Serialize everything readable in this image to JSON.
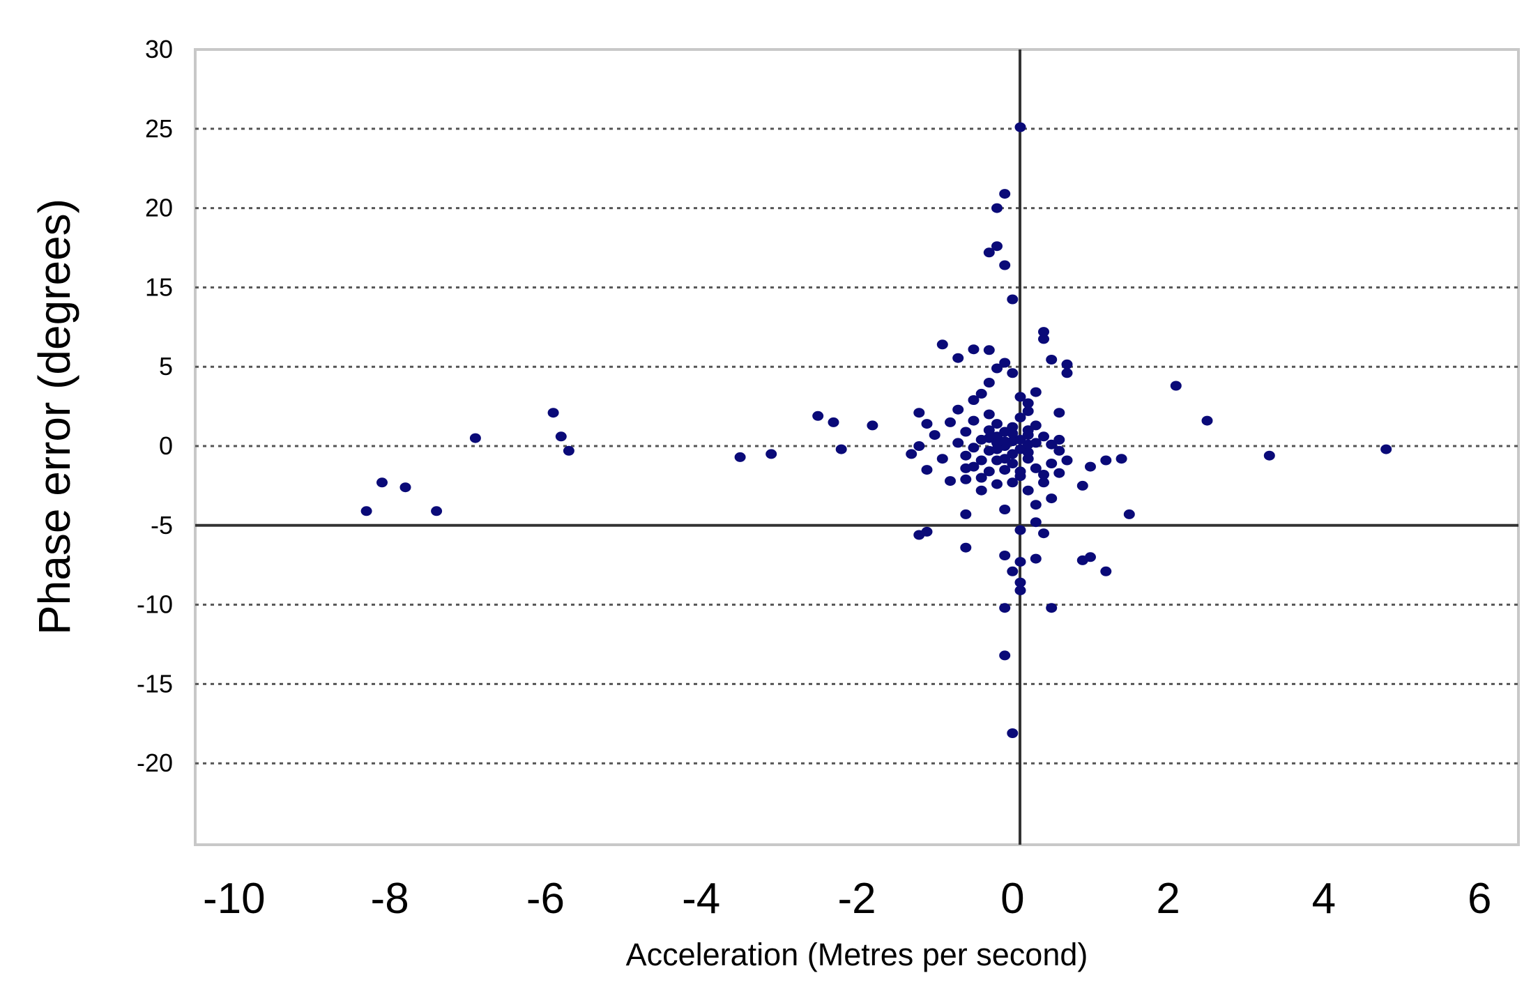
{
  "chart_data": {
    "type": "scatter",
    "xlabel": "Acceleration (Metres per second)",
    "ylabel": "Phase error (degrees)",
    "xlim": [
      -10.5,
      6.5
    ],
    "ylim": [
      -25,
      30
    ],
    "x_ticks": [
      "-10",
      "-8",
      "-6",
      "-4",
      "-2",
      "0",
      "2",
      "4",
      "6"
    ],
    "y_ticks": [
      "30",
      "25",
      "20",
      "15",
      "5",
      "0",
      "-5",
      "-10",
      "-15",
      "-20"
    ],
    "grid": "horizontal dotted",
    "marker_color": "#0a0a78",
    "series": [
      {
        "points": [
          [
            -8.3,
            -4.1
          ],
          [
            -8.1,
            -2.3
          ],
          [
            -7.8,
            -2.6
          ],
          [
            -7.4,
            -4.1
          ],
          [
            -6.9,
            0.5
          ],
          [
            -5.9,
            2.1
          ],
          [
            -5.8,
            0.6
          ],
          [
            -5.7,
            -0.3
          ],
          [
            -3.5,
            -0.7
          ],
          [
            -3.1,
            -0.5
          ],
          [
            -2.5,
            1.9
          ],
          [
            -2.3,
            1.5
          ],
          [
            -2.2,
            -0.2
          ],
          [
            -1.8,
            1.3
          ],
          [
            -1.2,
            -5.6
          ],
          [
            -1.1,
            -5.4
          ],
          [
            -0.6,
            -6.4
          ],
          [
            -0.6,
            -4.3
          ],
          [
            -0.3,
            -1.6
          ],
          [
            -0.9,
            7.8
          ],
          [
            -0.7,
            6.1
          ],
          [
            -0.5,
            7.2
          ],
          [
            -0.3,
            7.1
          ],
          [
            -0.3,
            17.2
          ],
          [
            -0.2,
            17.6
          ],
          [
            -0.2,
            20.0
          ],
          [
            -0.1,
            20.9
          ],
          [
            0.1,
            25.1
          ],
          [
            -0.1,
            16.4
          ],
          [
            0.0,
            13.5
          ],
          [
            0.4,
            8.5
          ],
          [
            0.4,
            9.4
          ],
          [
            0.5,
            5.9
          ],
          [
            0.7,
            5.3
          ],
          [
            0.7,
            4.6
          ],
          [
            0.6,
            2.1
          ],
          [
            0.2,
            2.7
          ],
          [
            0.3,
            3.4
          ],
          [
            2.1,
            3.8
          ],
          [
            2.5,
            1.6
          ],
          [
            3.3,
            -0.6
          ],
          [
            4.8,
            -0.2
          ],
          [
            1.4,
            -0.8
          ],
          [
            1.2,
            -0.9
          ],
          [
            1.0,
            -1.3
          ],
          [
            0.9,
            -2.5
          ],
          [
            1.5,
            -4.3
          ],
          [
            1.0,
            -7.0
          ],
          [
            0.9,
            -7.2
          ],
          [
            1.2,
            -7.9
          ],
          [
            0.5,
            -10.2
          ],
          [
            0.3,
            -7.1
          ],
          [
            0.4,
            -5.5
          ],
          [
            0.1,
            -7.3
          ],
          [
            0.1,
            -8.6
          ],
          [
            0.1,
            -9.1
          ],
          [
            -0.1,
            -10.2
          ],
          [
            0.0,
            -7.9
          ],
          [
            -0.1,
            -6.9
          ],
          [
            -0.1,
            -13.2
          ],
          [
            0.0,
            -18.1
          ],
          [
            0.1,
            -5.3
          ],
          [
            0.3,
            -4.8
          ],
          [
            -0.1,
            -4.0
          ],
          [
            0.3,
            -3.7
          ],
          [
            0.5,
            -3.3
          ],
          [
            -0.6,
            -2.1
          ],
          [
            -0.4,
            -2.8
          ],
          [
            -1.1,
            -1.5
          ],
          [
            -1.3,
            -0.5
          ],
          [
            -1.2,
            0.0
          ],
          [
            -1.1,
            1.4
          ],
          [
            -1.2,
            2.1
          ],
          [
            -1.0,
            0.7
          ],
          [
            -0.8,
            1.5
          ],
          [
            -0.7,
            2.3
          ],
          [
            -0.5,
            2.9
          ],
          [
            -0.4,
            3.3
          ],
          [
            -0.3,
            4.0
          ],
          [
            -0.2,
            4.9
          ],
          [
            -0.1,
            5.5
          ],
          [
            0.0,
            4.6
          ],
          [
            0.1,
            3.1
          ],
          [
            0.2,
            2.2
          ],
          [
            0.3,
            1.3
          ],
          [
            0.4,
            0.6
          ],
          [
            0.5,
            0.1
          ],
          [
            0.6,
            -0.3
          ],
          [
            0.7,
            -0.9
          ],
          [
            0.6,
            -1.7
          ],
          [
            0.4,
            -2.3
          ],
          [
            0.2,
            -2.8
          ],
          [
            0.0,
            -2.3
          ],
          [
            -0.2,
            -2.4
          ],
          [
            -0.4,
            -2.0
          ],
          [
            -0.5,
            -1.3
          ],
          [
            -0.6,
            -0.6
          ],
          [
            -0.7,
            0.2
          ],
          [
            -0.6,
            0.9
          ],
          [
            -0.5,
            1.6
          ],
          [
            -0.3,
            2.0
          ],
          [
            -0.2,
            1.4
          ],
          [
            -0.1,
            0.9
          ],
          [
            0.0,
            0.3
          ],
          [
            0.1,
            -0.2
          ],
          [
            0.2,
            -0.8
          ],
          [
            0.3,
            -1.4
          ],
          [
            0.1,
            -1.9
          ],
          [
            -0.1,
            -1.5
          ],
          [
            -0.2,
            -0.9
          ],
          [
            -0.3,
            -0.3
          ],
          [
            -0.4,
            0.4
          ],
          [
            -0.3,
            1.0
          ],
          [
            -0.2,
            0.6
          ],
          [
            -0.1,
            0.0
          ],
          [
            0.0,
            -0.5
          ],
          [
            0.1,
            0.4
          ],
          [
            0.2,
            1.0
          ],
          [
            0.3,
            0.2
          ],
          [
            0.2,
            -0.4
          ],
          [
            -0.1,
            -0.8
          ],
          [
            -0.2,
            -0.2
          ],
          [
            -0.3,
            0.5
          ],
          [
            0.0,
            1.2
          ],
          [
            0.1,
            1.8
          ],
          [
            0.2,
            0.7
          ],
          [
            -0.4,
            -0.9
          ],
          [
            -0.5,
            -0.1
          ],
          [
            -0.9,
            -0.8
          ],
          [
            -0.8,
            -2.2
          ],
          [
            -0.6,
            -1.4
          ],
          [
            0.4,
            -1.8
          ],
          [
            0.5,
            -1.1
          ],
          [
            0.6,
            0.4
          ],
          [
            0.0,
            0.8
          ],
          [
            -0.1,
            0.3
          ],
          [
            0.0,
            -1.1
          ],
          [
            0.1,
            -1.6
          ],
          [
            -0.2,
            0.2
          ],
          [
            0.2,
            0.1
          ]
        ]
      }
    ]
  }
}
